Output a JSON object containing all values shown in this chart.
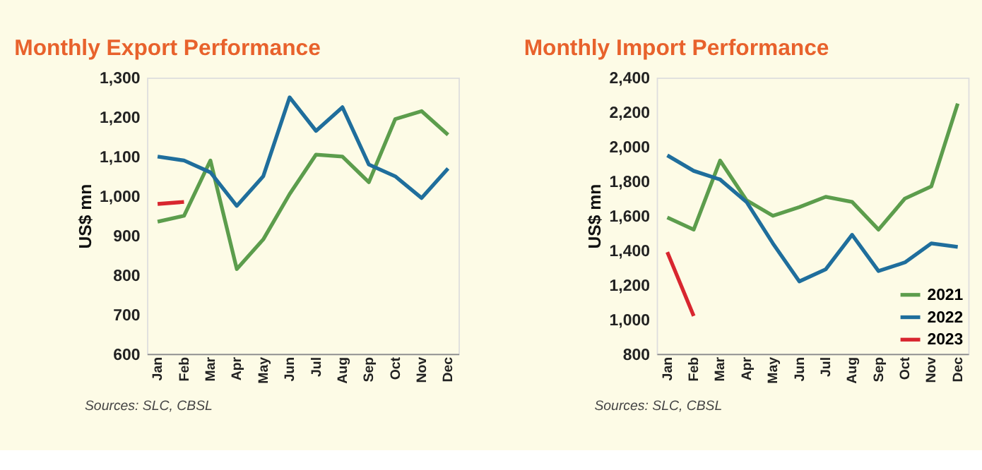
{
  "chart_data": [
    {
      "type": "line",
      "title": "Monthly Export Performance",
      "ylabel": "US$ mn",
      "legend": false,
      "categories": [
        "Jan",
        "Feb",
        "Mar",
        "Apr",
        "May",
        "Jun",
        "Jul",
        "Aug",
        "Sep",
        "Oct",
        "Nov",
        "Dec"
      ],
      "ylim": [
        600,
        1300
      ],
      "yticks": [
        {
          "value": 600,
          "label": "600"
        },
        {
          "value": 700,
          "label": "700"
        },
        {
          "value": 800,
          "label": "800"
        },
        {
          "value": 900,
          "label": "900"
        },
        {
          "value": 1000,
          "label": "1,000"
        },
        {
          "value": 1100,
          "label": "1,100"
        },
        {
          "value": 1200,
          "label": "1,200"
        },
        {
          "value": 1300,
          "label": "1,300"
        }
      ],
      "series": [
        {
          "color": "#5c9d4c",
          "values": [
            935,
            950,
            1090,
            815,
            890,
            1005,
            1105,
            1100,
            1035,
            1195,
            1215,
            1155
          ]
        },
        {
          "color": "#1f6e9c",
          "values": [
            1100,
            1090,
            1060,
            975,
            1050,
            1250,
            1165,
            1225,
            1080,
            1050,
            995,
            1070
          ]
        },
        {
          "color": "#d8262f",
          "values": [
            980,
            985,
            null,
            null,
            null,
            null,
            null,
            null,
            null,
            null,
            null,
            null
          ]
        }
      ],
      "annotations": [
        "Sources: SLC, CBSL"
      ]
    },
    {
      "type": "line",
      "title": "Monthly Import Performance",
      "ylabel": "US$ mn",
      "legend": "bottom right",
      "categories": [
        "Jan",
        "Feb",
        "Mar",
        "Apr",
        "May",
        "Jun",
        "Jul",
        "Aug",
        "Sep",
        "Oct",
        "Nov",
        "Dec"
      ],
      "ylim": [
        800,
        2400
      ],
      "yticks": [
        {
          "value": 800,
          "label": "800"
        },
        {
          "value": 1000,
          "label": "1,000"
        },
        {
          "value": 1200,
          "label": "1,200"
        },
        {
          "value": 1400,
          "label": "1,400"
        },
        {
          "value": 1600,
          "label": "1,600"
        },
        {
          "value": 1800,
          "label": "1,800"
        },
        {
          "value": 2000,
          "label": "2,000"
        },
        {
          "value": 2200,
          "label": "2,200"
        },
        {
          "value": 2400,
          "label": "2,400"
        }
      ],
      "series": [
        {
          "name": "2021",
          "color": "#5c9d4c",
          "values": [
            1590,
            1520,
            1920,
            1690,
            1600,
            1650,
            1710,
            1680,
            1520,
            1700,
            1770,
            2250
          ]
        },
        {
          "name": "2022",
          "color": "#1f6e9c",
          "values": [
            1950,
            1860,
            1810,
            1680,
            1440,
            1220,
            1290,
            1490,
            1280,
            1330,
            1440,
            1420
          ]
        },
        {
          "name": "2023",
          "color": "#d8262f",
          "values": [
            1390,
            1020,
            null,
            null,
            null,
            null,
            null,
            null,
            null,
            null,
            null,
            null
          ]
        }
      ],
      "annotations": [
        "Sources: SLC, CBSL"
      ]
    }
  ]
}
